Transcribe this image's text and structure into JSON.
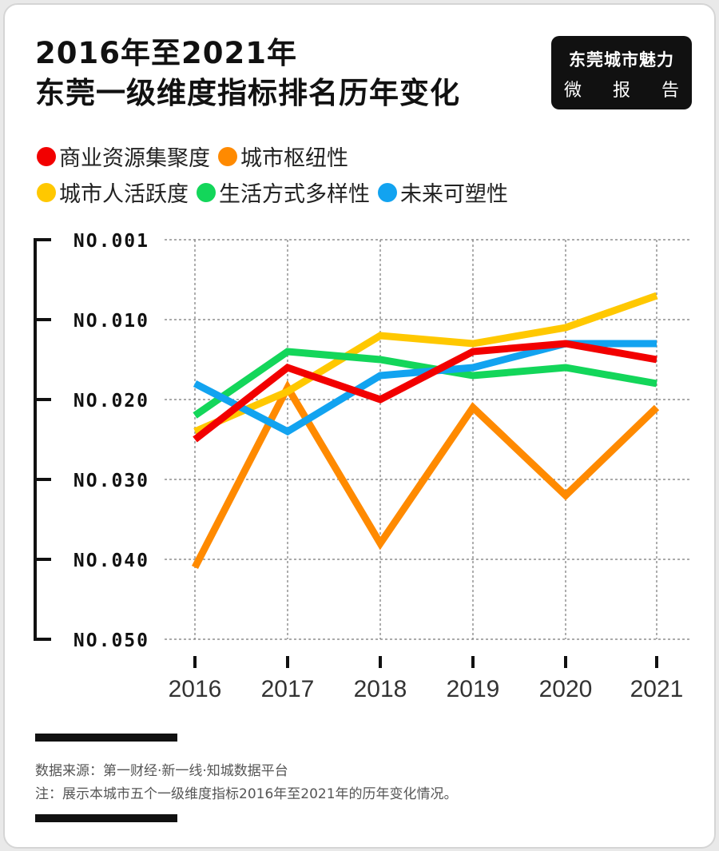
{
  "header": {
    "title_line1": "2016年至2021年",
    "title_line2": "东莞一级维度指标排名历年变化",
    "badge_title": "东莞城市魅力",
    "badge_sub": [
      "微",
      "报",
      "告"
    ]
  },
  "legend": [
    {
      "label": "商业资源集聚度",
      "color": "#f20000"
    },
    {
      "label": "城市枢纽性",
      "color": "#ff8a00"
    },
    {
      "label": "城市人活跃度",
      "color": "#ffc800"
    },
    {
      "label": "生活方式多样性",
      "color": "#13d65a"
    },
    {
      "label": "未来可塑性",
      "color": "#12a3f0"
    }
  ],
  "chart_data": {
    "type": "line",
    "x": [
      "2016",
      "2017",
      "2018",
      "2019",
      "2020",
      "2021"
    ],
    "y_tick_labels": [
      "NO.001",
      "NO.010",
      "NO.020",
      "NO.030",
      "NO.040",
      "NO.050"
    ],
    "y_ticks": [
      0,
      10,
      20,
      30,
      40,
      50
    ],
    "ylim": [
      0,
      50
    ],
    "y_inverted": true,
    "grid": true,
    "series": [
      {
        "name": "城市枢纽性",
        "color": "#ff8a00",
        "values": [
          41,
          18.5,
          38,
          21,
          32,
          21
        ]
      },
      {
        "name": "城市人活跃度",
        "color": "#ffc800",
        "values": [
          24,
          19,
          12,
          13,
          11,
          7
        ]
      },
      {
        "name": "生活方式多样性",
        "color": "#13d65a",
        "values": [
          22,
          14,
          15,
          17,
          16,
          18
        ]
      },
      {
        "name": "未来可塑性",
        "color": "#12a3f0",
        "values": [
          18,
          24,
          17,
          16,
          13,
          13
        ]
      },
      {
        "name": "商业资源集聚度",
        "color": "#f20000",
        "values": [
          25,
          16,
          20,
          14,
          13,
          15
        ]
      }
    ]
  },
  "footer": {
    "source": "数据来源：第一财经·新一线·知城数据平台",
    "note": "注：展示本城市五个一级维度指标2016年至2021年的历年变化情况。"
  }
}
